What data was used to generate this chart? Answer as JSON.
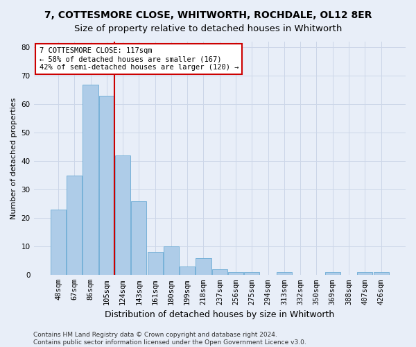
{
  "title": "7, COTTESMORE CLOSE, WHITWORTH, ROCHDALE, OL12 8ER",
  "subtitle": "Size of property relative to detached houses in Whitworth",
  "xlabel": "Distribution of detached houses by size in Whitworth",
  "ylabel": "Number of detached properties",
  "categories": [
    "48sqm",
    "67sqm",
    "86sqm",
    "105sqm",
    "124sqm",
    "143sqm",
    "161sqm",
    "180sqm",
    "199sqm",
    "218sqm",
    "237sqm",
    "256sqm",
    "275sqm",
    "294sqm",
    "313sqm",
    "332sqm",
    "350sqm",
    "369sqm",
    "388sqm",
    "407sqm",
    "426sqm"
  ],
  "values": [
    23,
    35,
    67,
    63,
    42,
    26,
    8,
    10,
    3,
    6,
    2,
    1,
    1,
    0,
    1,
    0,
    0,
    1,
    0,
    1,
    1
  ],
  "bar_color": "#aecce8",
  "bar_edge_color": "#6aaad4",
  "vline_pos": 3.5,
  "vline_color": "#cc0000",
  "annotation_text": "7 COTTESMORE CLOSE: 117sqm\n← 58% of detached houses are smaller (167)\n42% of semi-detached houses are larger (120) →",
  "annotation_box_color": "#ffffff",
  "annotation_box_edge": "#cc0000",
  "ylim": [
    0,
    82
  ],
  "yticks": [
    0,
    10,
    20,
    30,
    40,
    50,
    60,
    70,
    80
  ],
  "grid_color": "#ccd6e8",
  "bg_color": "#e8eef8",
  "fig_bg_color": "#e8eef8",
  "footer": "Contains HM Land Registry data © Crown copyright and database right 2024.\nContains public sector information licensed under the Open Government Licence v3.0.",
  "title_fontsize": 10,
  "subtitle_fontsize": 9.5,
  "xlabel_fontsize": 9,
  "ylabel_fontsize": 8,
  "tick_fontsize": 7.5,
  "annotation_fontsize": 7.5,
  "footer_fontsize": 6.5
}
